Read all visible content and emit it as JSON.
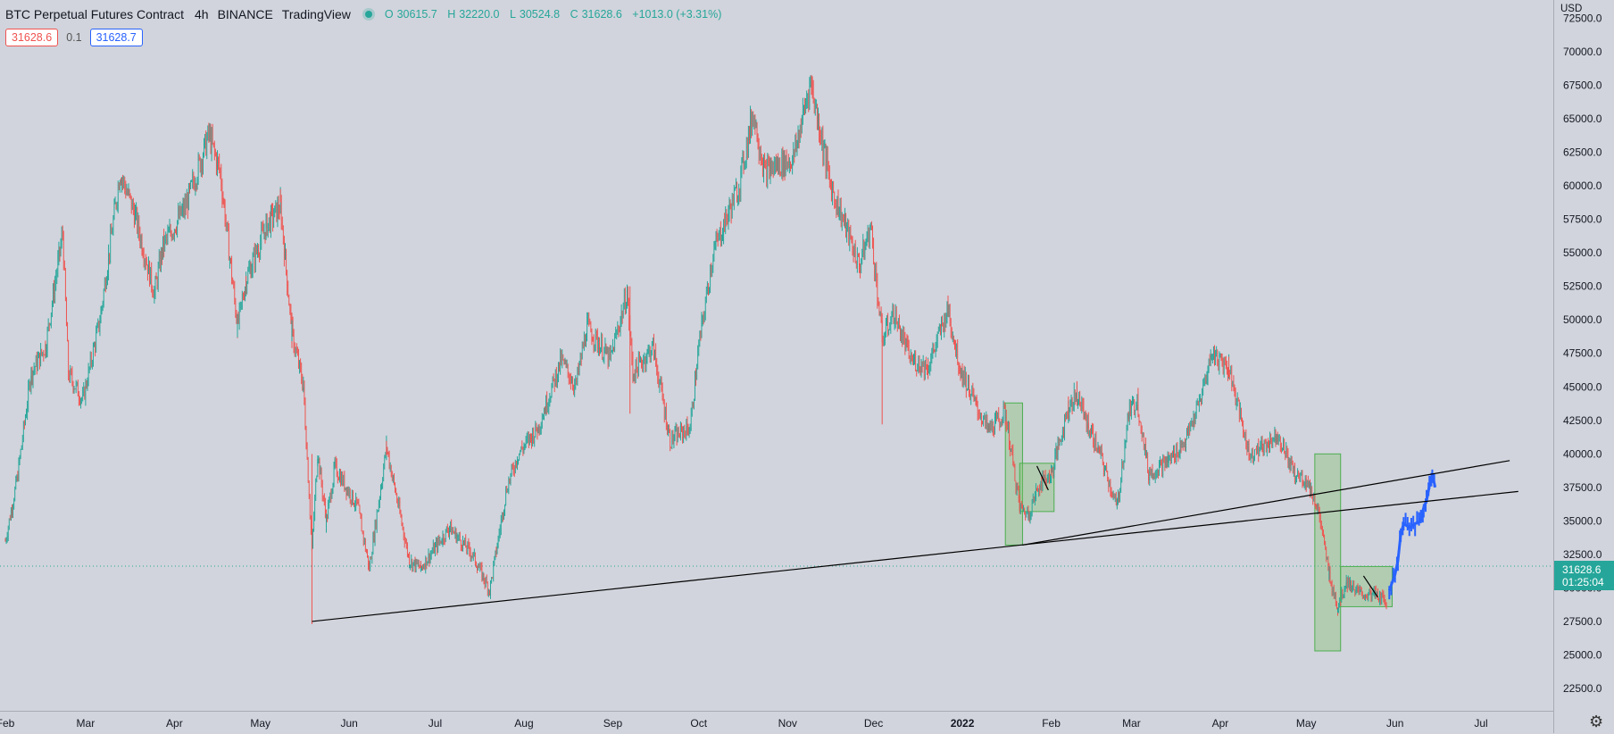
{
  "header": {
    "symbol": "BTC Perpetual Futures Contract",
    "timeframe": "4h",
    "exchange": "BINANCE",
    "source": "TradingView",
    "open_label": "O",
    "open": "30615.7",
    "high_label": "H",
    "high": "32220.0",
    "low_label": "L",
    "low": "30524.8",
    "close_label": "C",
    "close": "31628.6",
    "change": "+1013.0 (+3.31%)"
  },
  "price_boxes": {
    "bid": "31628.6",
    "spread": "0.1",
    "ask": "31628.7"
  },
  "axis": {
    "currency": "USD",
    "current_price": "31628.6",
    "countdown": "01:25:04",
    "settings_icon": "gear-icon"
  },
  "colors": {
    "up": "#26a69a",
    "down": "#ef5350",
    "projection": "#2962ff",
    "background": "#d1d4dc",
    "zone": "#b7d9a6"
  },
  "chart_data": {
    "type": "candlestick",
    "interval": "4h",
    "ylim": [
      20000,
      72500
    ],
    "y_ticks": [
      22500,
      25000,
      27500,
      30000,
      32500,
      35000,
      37500,
      40000,
      42500,
      45000,
      47500,
      50000,
      52500,
      55000,
      57500,
      60000,
      62500,
      65000,
      67500,
      70000,
      72500
    ],
    "y_tick_labels": [
      "22500.0",
      "25000.0",
      "27500.0",
      "30000.0",
      "32500.0",
      "35000.0",
      "37500.0",
      "40000.0",
      "42500.0",
      "45000.0",
      "47500.0",
      "50000.0",
      "52500.0",
      "55000.0",
      "57500.0",
      "60000.0",
      "62500.0",
      "65000.0",
      "67500.0",
      "70000.0",
      "72500.0"
    ],
    "xlim": [
      "2021-02-01",
      "2022-07-20"
    ],
    "x_ticks": [
      {
        "date": "2021-02-01",
        "label": "Feb"
      },
      {
        "date": "2021-03-01",
        "label": "Mar"
      },
      {
        "date": "2021-04-01",
        "label": "Apr"
      },
      {
        "date": "2021-05-01",
        "label": "May"
      },
      {
        "date": "2021-06-01",
        "label": "Jun"
      },
      {
        "date": "2021-07-01",
        "label": "Jul"
      },
      {
        "date": "2021-08-01",
        "label": "Aug"
      },
      {
        "date": "2021-09-01",
        "label": "Sep"
      },
      {
        "date": "2021-10-01",
        "label": "Oct"
      },
      {
        "date": "2021-11-01",
        "label": "Nov"
      },
      {
        "date": "2021-12-01",
        "label": "Dec"
      },
      {
        "date": "2022-01-01",
        "label": "2022"
      },
      {
        "date": "2022-02-01",
        "label": "Feb"
      },
      {
        "date": "2022-03-01",
        "label": "Mar"
      },
      {
        "date": "2022-04-01",
        "label": "Apr"
      },
      {
        "date": "2022-05-01",
        "label": "May"
      },
      {
        "date": "2022-06-01",
        "label": "Jun"
      },
      {
        "date": "2022-07-01",
        "label": "Jul"
      }
    ],
    "price_path": [
      [
        "2021-02-01",
        33500
      ],
      [
        "2021-02-05",
        38000
      ],
      [
        "2021-02-10",
        46000
      ],
      [
        "2021-02-15",
        48000
      ],
      [
        "2021-02-21",
        56500
      ],
      [
        "2021-02-23",
        46000
      ],
      [
        "2021-02-28",
        44000
      ],
      [
        "2021-03-06",
        50000
      ],
      [
        "2021-03-13",
        61000
      ],
      [
        "2021-03-18",
        58000
      ],
      [
        "2021-03-25",
        52000
      ],
      [
        "2021-03-28",
        55500
      ],
      [
        "2021-04-05",
        58500
      ],
      [
        "2021-04-13",
        63800
      ],
      [
        "2021-04-17",
        61000
      ],
      [
        "2021-04-23",
        49500
      ],
      [
        "2021-04-26",
        53000
      ],
      [
        "2021-05-03",
        57000
      ],
      [
        "2021-05-08",
        58500
      ],
      [
        "2021-05-12",
        49000
      ],
      [
        "2021-05-16",
        45000
      ],
      [
        "2021-05-19",
        33000
      ],
      [
        "2021-05-21",
        40000
      ],
      [
        "2021-05-24",
        35000
      ],
      [
        "2021-05-27",
        39000
      ],
      [
        "2021-06-04",
        36000
      ],
      [
        "2021-06-08",
        31500
      ],
      [
        "2021-06-14",
        40500
      ],
      [
        "2021-06-22",
        32000
      ],
      [
        "2021-06-26",
        31500
      ],
      [
        "2021-07-06",
        34500
      ],
      [
        "2021-07-14",
        32500
      ],
      [
        "2021-07-20",
        29800
      ],
      [
        "2021-07-26",
        37500
      ],
      [
        "2021-07-30",
        40000
      ],
      [
        "2021-08-06",
        42000
      ],
      [
        "2021-08-14",
        47000
      ],
      [
        "2021-08-19",
        45000
      ],
      [
        "2021-08-23",
        49500
      ],
      [
        "2021-08-31",
        47000
      ],
      [
        "2021-09-06",
        52000
      ],
      [
        "2021-09-08",
        46000
      ],
      [
        "2021-09-15",
        48000
      ],
      [
        "2021-09-21",
        41000
      ],
      [
        "2021-09-28",
        42000
      ],
      [
        "2021-10-01",
        48000
      ],
      [
        "2021-10-06",
        55000
      ],
      [
        "2021-10-15",
        60000
      ],
      [
        "2021-10-20",
        65500
      ],
      [
        "2021-10-24",
        61000
      ],
      [
        "2021-10-28",
        61500
      ],
      [
        "2021-11-03",
        62000
      ],
      [
        "2021-11-09",
        67800
      ],
      [
        "2021-11-12",
        64500
      ],
      [
        "2021-11-16",
        60000
      ],
      [
        "2021-11-22",
        56500
      ],
      [
        "2021-11-26",
        54000
      ],
      [
        "2021-11-30",
        57000
      ],
      [
        "2021-12-04",
        48500
      ],
      [
        "2021-12-08",
        50500
      ],
      [
        "2021-12-14",
        47000
      ],
      [
        "2021-12-20",
        46500
      ],
      [
        "2021-12-27",
        50800
      ],
      [
        "2021-12-31",
        46500
      ],
      [
        "2022-01-06",
        43500
      ],
      [
        "2022-01-10",
        41800
      ],
      [
        "2022-01-16",
        43000
      ],
      [
        "2022-01-21",
        36000
      ],
      [
        "2022-01-24",
        35500
      ],
      [
        "2022-01-28",
        37800
      ],
      [
        "2022-02-01",
        38500
      ],
      [
        "2022-02-07",
        43500
      ],
      [
        "2022-02-10",
        44500
      ],
      [
        "2022-02-14",
        42000
      ],
      [
        "2022-02-18",
        40000
      ],
      [
        "2022-02-24",
        36000
      ],
      [
        "2022-02-28",
        43000
      ],
      [
        "2022-03-03",
        44000
      ],
      [
        "2022-03-07",
        38500
      ],
      [
        "2022-03-14",
        39500
      ],
      [
        "2022-03-20",
        41000
      ],
      [
        "2022-03-25",
        44000
      ],
      [
        "2022-03-29",
        47500
      ],
      [
        "2022-04-04",
        46500
      ],
      [
        "2022-04-11",
        40000
      ],
      [
        "2022-04-16",
        40500
      ],
      [
        "2022-04-21",
        41500
      ],
      [
        "2022-04-27",
        38500
      ],
      [
        "2022-05-01",
        38000
      ],
      [
        "2022-05-05",
        36000
      ],
      [
        "2022-05-09",
        31000
      ],
      [
        "2022-05-12",
        28500
      ],
      [
        "2022-05-15",
        30500
      ],
      [
        "2022-05-20",
        29500
      ],
      [
        "2022-05-25",
        29500
      ],
      [
        "2022-05-29",
        29000
      ]
    ],
    "projection": [
      [
        "2022-05-30",
        29800
      ],
      [
        "2022-06-01",
        31000
      ],
      [
        "2022-06-02",
        32000
      ],
      [
        "2022-06-03",
        34000
      ],
      [
        "2022-06-04",
        34800
      ],
      [
        "2022-06-06",
        34500
      ],
      [
        "2022-06-08",
        34800
      ],
      [
        "2022-06-10",
        35000
      ],
      [
        "2022-06-11",
        36000
      ],
      [
        "2022-06-12",
        36500
      ],
      [
        "2022-06-13",
        37600
      ],
      [
        "2022-06-14",
        38500
      ],
      [
        "2022-06-15",
        37500
      ]
    ],
    "trendlines": [
      {
        "from": [
          "2021-05-19",
          27500
        ],
        "to": [
          "2022-07-14",
          37200
        ]
      },
      {
        "from": [
          "2022-01-22",
          33200
        ],
        "to": [
          "2022-07-11",
          39500
        ]
      },
      {
        "from": [
          "2022-01-27",
          39100
        ],
        "to": [
          "2022-01-31",
          37300
        ]
      },
      {
        "from": [
          "2022-05-21",
          30900
        ],
        "to": [
          "2022-05-26",
          29300
        ]
      }
    ],
    "zones": [
      {
        "from": "2022-01-16",
        "to": "2022-01-22",
        "low": 33200,
        "high": 43800
      },
      {
        "from": "2022-01-21",
        "to": "2022-02-02",
        "low": 35700,
        "high": 39300
      },
      {
        "from": "2022-05-04",
        "to": "2022-05-13",
        "low": 25300,
        "high": 40000
      },
      {
        "from": "2022-05-13",
        "to": "2022-05-31",
        "low": 28600,
        "high": 31600
      }
    ],
    "last_price": 31628.6
  }
}
